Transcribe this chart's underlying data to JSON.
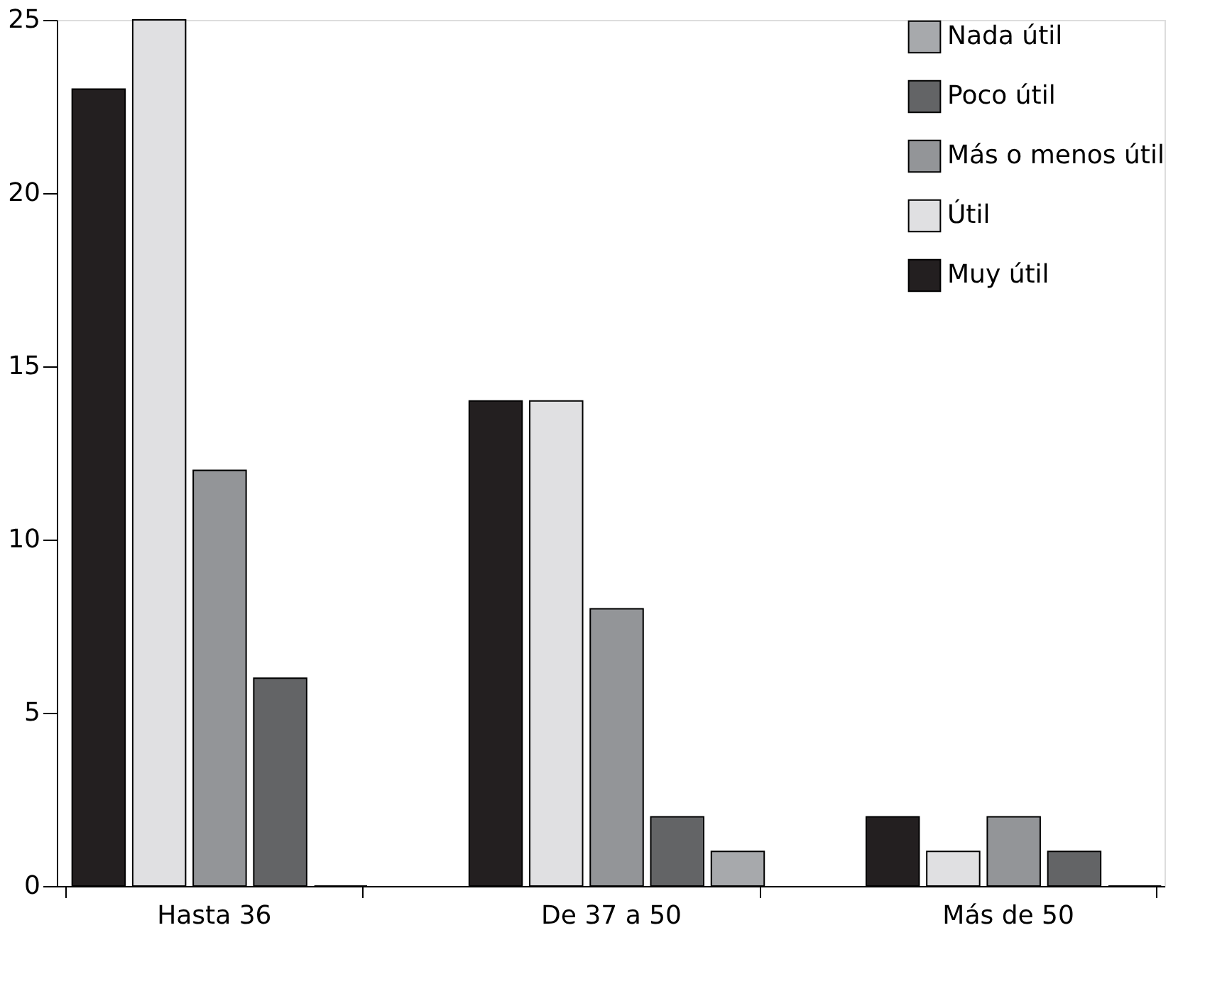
{
  "chart_data": {
    "type": "bar",
    "categories": [
      "Hasta 36",
      "De 37 a 50",
      "Más de 50"
    ],
    "series": [
      {
        "name": "Muy útil",
        "color": "#231f20",
        "values": [
          23,
          14,
          2
        ]
      },
      {
        "name": "Útil",
        "color": "#e0e0e2",
        "values": [
          25,
          14,
          1
        ]
      },
      {
        "name": "Más o menos útil",
        "color": "#939598",
        "values": [
          12,
          8,
          2
        ]
      },
      {
        "name": "Poco útil",
        "color": "#636466",
        "values": [
          6,
          2,
          1
        ]
      },
      {
        "name": "Nada útil",
        "color": "#a7a9ac",
        "values": [
          0,
          1,
          0
        ]
      }
    ],
    "ylim": [
      0,
      25
    ],
    "yticks": [
      0,
      5,
      10,
      15,
      20,
      25
    ],
    "grid": false,
    "legend": "top right"
  }
}
